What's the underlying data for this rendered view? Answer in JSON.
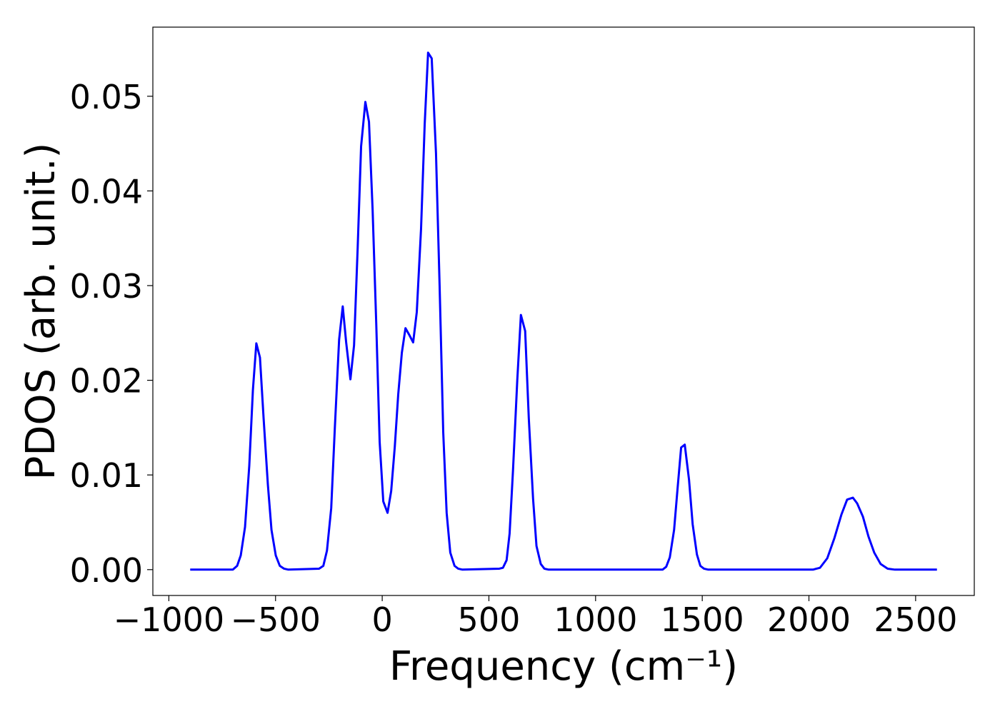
{
  "chart_data": {
    "type": "line",
    "xlabel": "Frequency (cm⁻¹)",
    "ylabel": "PDOS (arb. unit.)",
    "color": "#0000ff",
    "x": [
      -900,
      -700,
      -680,
      -663,
      -643,
      -623,
      -606,
      -590,
      -573,
      -556,
      -536,
      -519,
      -499,
      -480,
      -460,
      -440,
      -296,
      -276,
      -259,
      -239,
      -222,
      -202,
      -185,
      -169,
      -149,
      -132,
      -115,
      -99,
      -79,
      -62,
      -45,
      -28,
      -12,
      5,
      25,
      42,
      59,
      75,
      92,
      109,
      129,
      145,
      162,
      182,
      199,
      215,
      232,
      252,
      269,
      286,
      302,
      319,
      339,
      356,
      376,
      549,
      566,
      583,
      597,
      613,
      633,
      650,
      670,
      687,
      707,
      723,
      743,
      760,
      780,
      1314,
      1331,
      1348,
      1368,
      1384,
      1401,
      1418,
      1438,
      1455,
      1475,
      1491,
      1508,
      1528,
      2019,
      2052,
      2086,
      2119,
      2152,
      2179,
      2206,
      2226,
      2253,
      2279,
      2306,
      2336,
      2369,
      2403,
      2600
    ],
    "values": [
      0,
      0,
      0.0004,
      0.0015,
      0.0045,
      0.011,
      0.019,
      0.0239,
      0.0224,
      0.016,
      0.009,
      0.0042,
      0.0015,
      0.0004,
      0.0001,
      0,
      0.0001,
      0.0004,
      0.002,
      0.0065,
      0.015,
      0.0243,
      0.0278,
      0.024,
      0.0201,
      0.0237,
      0.034,
      0.0447,
      0.0494,
      0.0473,
      0.038,
      0.026,
      0.0135,
      0.0072,
      0.006,
      0.0083,
      0.013,
      0.0185,
      0.0229,
      0.0255,
      0.0247,
      0.024,
      0.0272,
      0.036,
      0.047,
      0.0546,
      0.054,
      0.044,
      0.03,
      0.0145,
      0.006,
      0.0018,
      0.0004,
      0.0001,
      0,
      0.0001,
      0.0002,
      0.001,
      0.0038,
      0.0105,
      0.02,
      0.0269,
      0.0252,
      0.016,
      0.0075,
      0.0025,
      0.0006,
      0.0001,
      0,
      0,
      0.0003,
      0.0013,
      0.0042,
      0.0085,
      0.0129,
      0.0132,
      0.0095,
      0.0048,
      0.0016,
      0.0004,
      0.0001,
      0,
      0,
      0.0002,
      0.0012,
      0.0033,
      0.0058,
      0.0074,
      0.0076,
      0.007,
      0.0056,
      0.0035,
      0.0018,
      0.0006,
      0.0001,
      0,
      0
    ],
    "xlim": [
      -1075,
      2775
    ],
    "ylim": [
      -0.00273,
      0.0573
    ],
    "xticks": [
      {
        "value": -1000,
        "label": "−1000"
      },
      {
        "value": -500,
        "label": "−500"
      },
      0,
      500,
      1000,
      1500,
      2000,
      2500
    ],
    "yticks": [
      {
        "value": 0,
        "label": "0.00"
      },
      {
        "value": 0.01,
        "label": "0.01"
      },
      {
        "value": 0.02,
        "label": "0.02"
      },
      {
        "value": 0.03,
        "label": "0.03"
      },
      {
        "value": 0.04,
        "label": "0.04"
      },
      {
        "value": 0.05,
        "label": "0.05"
      }
    ]
  }
}
